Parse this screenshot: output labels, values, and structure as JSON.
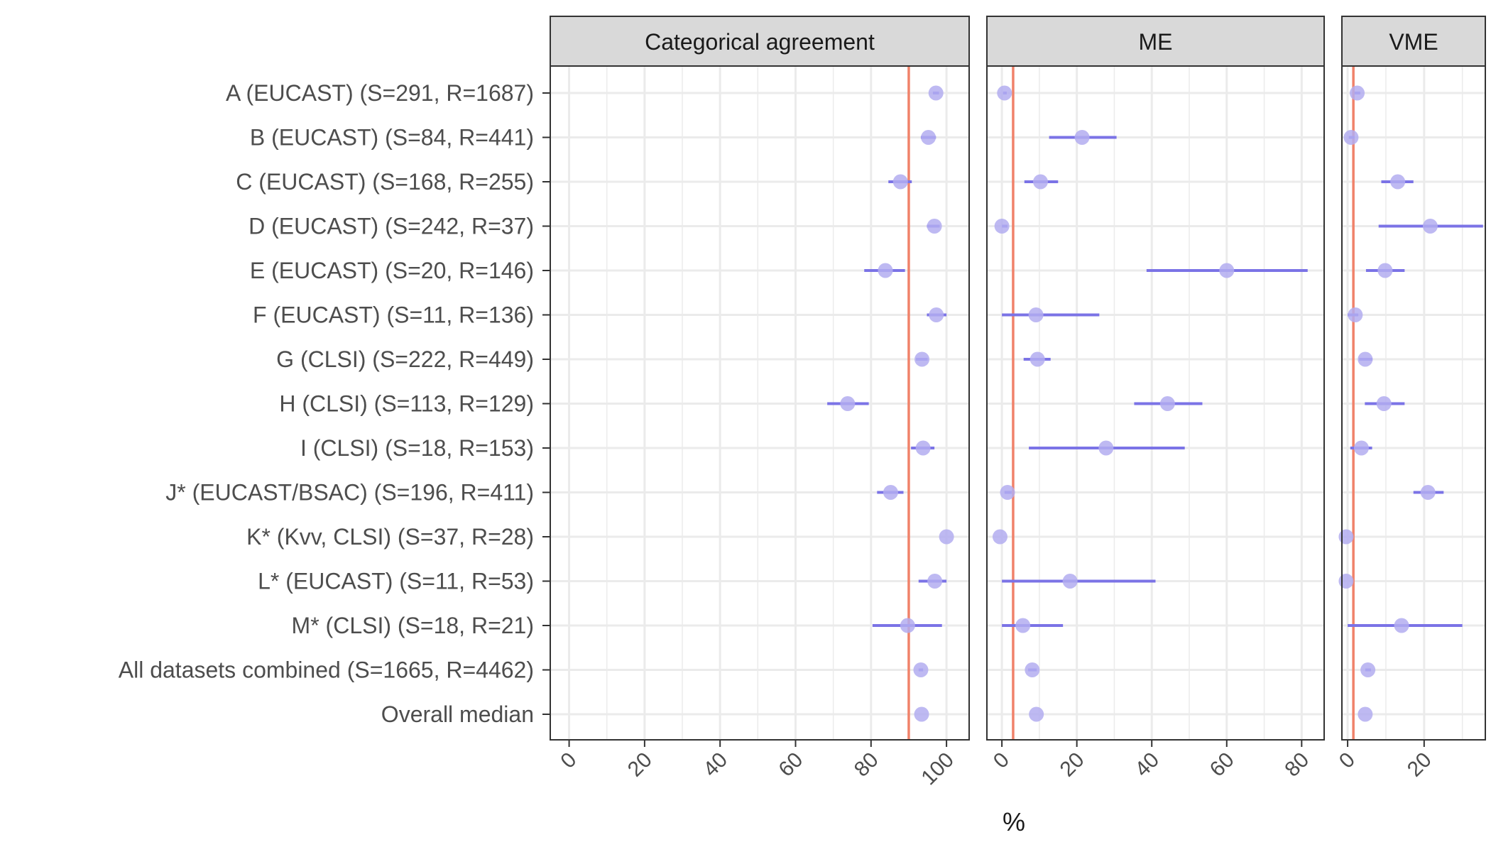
{
  "chart_data": {
    "type": "scatter",
    "xlabel": "%",
    "categories": [
      "A (EUCAST) (S=291, R=1687)",
      "B (EUCAST) (S=84, R=441)",
      "C (EUCAST) (S=168, R=255)",
      "D (EUCAST) (S=242, R=37)",
      "E (EUCAST) (S=20, R=146)",
      "F (EUCAST) (S=11, R=136)",
      "G (CLSI) (S=222, R=449)",
      "H (CLSI) (S=113, R=129)",
      "I (CLSI) (S=18, R=153)",
      "J* (EUCAST/BSAC) (S=196, R=411)",
      "K* (Kvv, CLSI) (S=37, R=28)",
      "L* (EUCAST) (S=11, R=53)",
      "M* (CLSI) (S=18, R=21)",
      "All datasets combined (S=1665, R=4462)",
      "Overall median"
    ],
    "panels": [
      {
        "name": "Categorical agreement",
        "xlim": [
          -5,
          106
        ],
        "ticks": [
          "0",
          "20",
          "40",
          "60",
          "80",
          "100"
        ],
        "tick_values": [
          0,
          20,
          40,
          60,
          80,
          100
        ],
        "reference_line": 90,
        "estimates": [
          97.2,
          95.2,
          87.8,
          96.8,
          83.8,
          97.3,
          93.5,
          73.8,
          93.8,
          85.2,
          100,
          96.9,
          89.7,
          93.2,
          93.4
        ],
        "ci_low": [
          96.4,
          93.2,
          84.6,
          94.8,
          78.2,
          94.8,
          91.9,
          68.4,
          90.6,
          81.6,
          100,
          92.6,
          80.4,
          92.6,
          null
        ],
        "ci_high": [
          98.0,
          97.2,
          90.8,
          98.2,
          89.0,
          100,
          95.0,
          79.4,
          96.8,
          88.6,
          100,
          100,
          98.8,
          93.8,
          null
        ]
      },
      {
        "name": "ME",
        "xlim": [
          -4,
          86
        ],
        "ticks": [
          "0",
          "20",
          "40",
          "60",
          "80"
        ],
        "tick_values": [
          0,
          20,
          40,
          60,
          80
        ],
        "reference_line": 3,
        "estimates": [
          0.7,
          21.4,
          10.3,
          0,
          60.0,
          9.1,
          9.5,
          44.2,
          27.8,
          1.5,
          -0.5,
          18.2,
          5.6,
          8.1,
          9.2
        ],
        "ci_low": [
          0.3,
          12.6,
          6.0,
          0,
          38.6,
          0,
          5.8,
          35.3,
          7.2,
          0.7,
          -0.5,
          0,
          0,
          7.0,
          null
        ],
        "ci_high": [
          1.3,
          30.6,
          15.0,
          1.5,
          81.6,
          26.0,
          13.0,
          53.5,
          48.8,
          2.6,
          -0.5,
          41.0,
          16.3,
          9.3,
          null
        ]
      },
      {
        "name": "VME",
        "xlim": [
          -1.5,
          36
        ],
        "ticks": [
          "0",
          "20"
        ],
        "tick_values": [
          0,
          20
        ],
        "reference_line": 1.5,
        "estimates": [
          2.5,
          0.9,
          13.1,
          21.6,
          9.8,
          2.0,
          4.6,
          9.5,
          3.6,
          21.0,
          -0.4,
          -0.4,
          14.1,
          5.3,
          4.6
        ],
        "ci_low": [
          1.8,
          0.3,
          8.8,
          8.1,
          4.8,
          0,
          3.0,
          4.5,
          0.7,
          17.2,
          -0.4,
          -0.4,
          0,
          4.6,
          null
        ],
        "ci_high": [
          3.3,
          1.8,
          17.2,
          35.4,
          14.9,
          2.8,
          6.5,
          14.9,
          6.4,
          25.1,
          -0.4,
          -0.4,
          30.0,
          6.1,
          null
        ]
      }
    ],
    "colors": {
      "point_fill": "#b3adf0",
      "errorbar": "#7b73e6",
      "reference_line": "#f0826a",
      "strip_background": "#d9d9d9",
      "grid": "#ebebeb",
      "frame": "#333333"
    }
  }
}
